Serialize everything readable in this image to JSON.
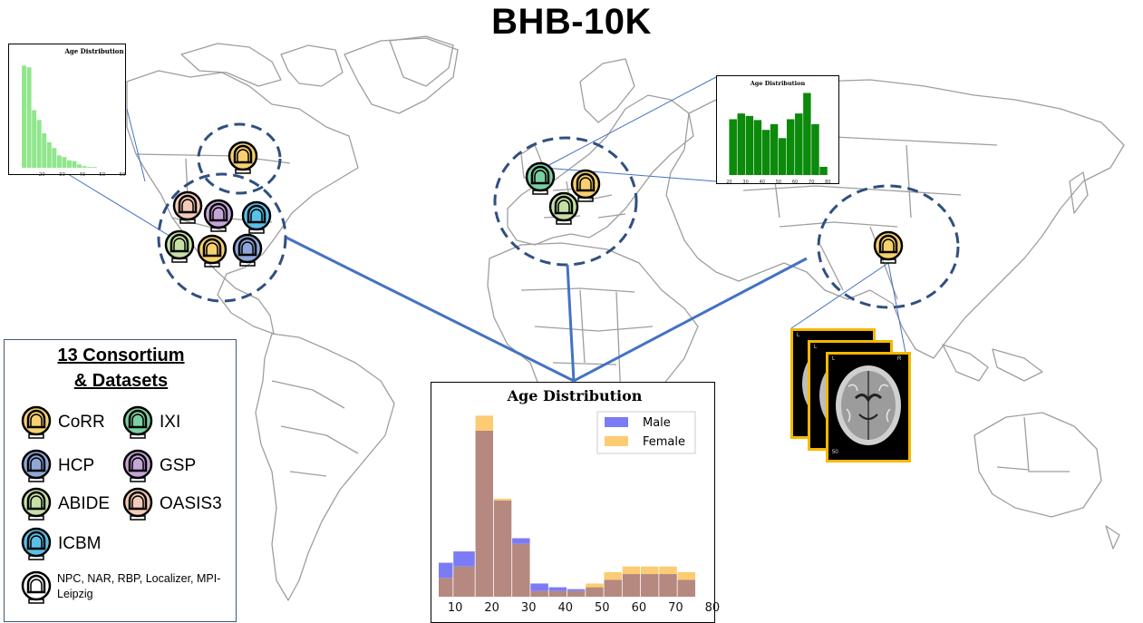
{
  "title": "BHB-10K",
  "colors": {
    "CoRR": "#f7d070",
    "HCP": "#8fa8d8",
    "ABIDE": "#c5e0a5",
    "ICBM": "#5bc0e8",
    "IXI": "#7ccfa0",
    "GSP": "#c5a5d8",
    "OASIS3": "#f3cbb8",
    "other": "#ffffff",
    "ellipse": "#2f4f7f",
    "connector": "#4472c4",
    "map_line": "#9e9e9e",
    "male": "#7b7bf5",
    "female": "#fccb72",
    "overlap": "#b58880",
    "light_green": "#90e68c",
    "dark_green": "#0b8a0b",
    "mri_border": "#f5b800"
  },
  "legend": {
    "title_line1": "13 Consortium",
    "title_line2": "& Datasets",
    "items": [
      {
        "label": "CoRR",
        "key": "CoRR",
        "icon": "scanner-icon"
      },
      {
        "label": "HCP",
        "key": "HCP",
        "icon": "scanner-icon"
      },
      {
        "label": "ABIDE",
        "key": "ABIDE",
        "icon": "scanner-icon"
      },
      {
        "label": "ICBM",
        "key": "ICBM",
        "icon": "scanner-icon"
      },
      {
        "label": "IXI",
        "key": "IXI",
        "icon": "scanner-icon"
      },
      {
        "label": "GSP",
        "key": "GSP",
        "icon": "scanner-icon"
      },
      {
        "label": "OASIS3",
        "key": "OASIS3",
        "icon": "scanner-icon"
      }
    ],
    "other_label": "NPC, NAR, RBP, Localizer, MPI-Leipzig"
  },
  "sites": [
    {
      "region": "north-america-north",
      "datasets": [
        "CoRR"
      ]
    },
    {
      "region": "north-america",
      "datasets": [
        "OASIS3",
        "GSP",
        "ICBM",
        "ABIDE",
        "CoRR",
        "HCP"
      ]
    },
    {
      "region": "europe",
      "datasets": [
        "IXI",
        "CoRR",
        "ABIDE"
      ]
    },
    {
      "region": "east-asia",
      "datasets": [
        "CoRR"
      ]
    }
  ],
  "chart_data": [
    {
      "type": "bar",
      "title": "Age Distribution",
      "x": [
        10,
        12.5,
        15,
        17.5,
        20,
        22.5,
        25,
        27.5,
        30,
        32.5,
        35,
        37.5,
        40,
        42.5,
        45
      ],
      "values": [
        124,
        122,
        70,
        58,
        42,
        31,
        24,
        15,
        13,
        9,
        8,
        4,
        2,
        1,
        1
      ],
      "xticks": [
        "20",
        "30",
        "40",
        "50",
        "60"
      ],
      "xlim": [
        5,
        60
      ],
      "ylim": [
        0,
        130
      ]
    },
    {
      "type": "bar",
      "title": "Age Distribution",
      "x": [
        20,
        25,
        30,
        35,
        40,
        45,
        50,
        55,
        60,
        65,
        70,
        75
      ],
      "values": [
        68,
        75,
        72,
        67,
        55,
        62,
        45,
        68,
        75,
        100,
        62,
        10
      ],
      "xticks": [
        "20",
        "30",
        "40",
        "50",
        "60",
        "70",
        "80"
      ],
      "xlim": [
        17,
        82
      ],
      "ylim": [
        0,
        105
      ]
    },
    {
      "type": "bar",
      "title": "Age Distribution",
      "x": [
        5,
        10,
        15,
        20,
        25,
        30,
        35,
        40,
        45,
        50,
        55,
        60,
        65,
        70,
        75
      ],
      "xlim": [
        8,
        81
      ],
      "ylim": [
        0,
        1.0
      ],
      "xticks": [
        "10",
        "20",
        "30",
        "40",
        "50",
        "60",
        "70",
        "80"
      ],
      "legend_position": "top-right",
      "series": [
        {
          "name": "Male",
          "bins": [
            [
              8,
              12,
              0.18
            ],
            [
              12,
              18,
              0.24
            ],
            [
              18,
              23,
              0.88
            ],
            [
              23,
              28,
              0.51
            ],
            [
              28,
              33,
              0.31
            ],
            [
              33,
              38,
              0.07
            ],
            [
              38,
              43,
              0.05
            ],
            [
              43,
              48,
              0.04
            ],
            [
              48,
              53,
              0.05
            ],
            [
              53,
              58,
              0.09
            ],
            [
              58,
              63,
              0.12
            ],
            [
              63,
              68,
              0.12
            ],
            [
              68,
              73,
              0.12
            ],
            [
              73,
              78,
              0.09
            ]
          ]
        },
        {
          "name": "Female",
          "bins": [
            [
              8,
              12,
              0.1
            ],
            [
              12,
              18,
              0.16
            ],
            [
              18,
              23,
              0.96
            ],
            [
              23,
              28,
              0.52
            ],
            [
              28,
              33,
              0.28
            ],
            [
              33,
              38,
              0.03
            ],
            [
              38,
              43,
              0.03
            ],
            [
              43,
              48,
              0.03
            ],
            [
              48,
              53,
              0.07
            ],
            [
              53,
              58,
              0.13
            ],
            [
              58,
              63,
              0.16
            ],
            [
              63,
              68,
              0.16
            ],
            [
              68,
              73,
              0.16
            ],
            [
              73,
              78,
              0.13
            ]
          ]
        }
      ]
    }
  ],
  "mri": {
    "left_label": "L",
    "right_label": "R",
    "slice_number": "50"
  }
}
